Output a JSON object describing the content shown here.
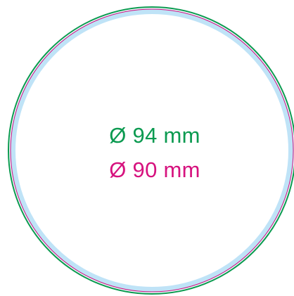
{
  "colors": {
    "background": "#ffffff",
    "bleed_ring": "#bfe3f7",
    "outer_circle": "#0b9a50",
    "inner_circle": "#d6127e"
  },
  "labels": {
    "outer_diameter": "Ø 94 mm",
    "inner_diameter": "Ø 90 mm"
  }
}
